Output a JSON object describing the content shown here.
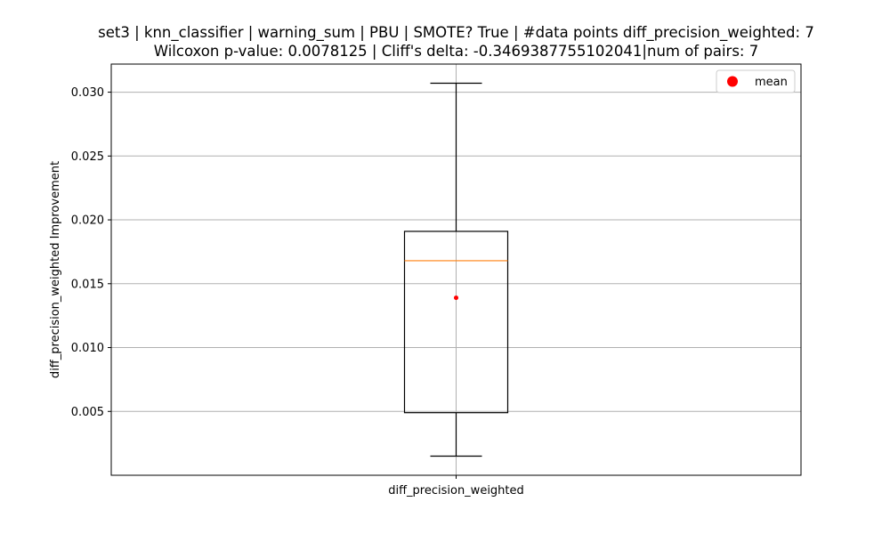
{
  "chart_data": {
    "type": "box",
    "title_line1": "set3 | knn_classifier | warning_sum | PBU | SMOTE? True | #data points diff_precision_weighted: 7",
    "title_line2": "Wilcoxon p-value: 0.0078125 | Cliff's delta: -0.3469387755102041|num of pairs: 7",
    "xlabel": "",
    "ylabel": "diff_precision_weighted Improvement",
    "categories": [
      "diff_precision_weighted"
    ],
    "box": {
      "whisker_low": 0.0015,
      "q1": 0.0049,
      "median": 0.0168,
      "q3": 0.0191,
      "whisker_high": 0.0307,
      "mean": 0.0139
    },
    "ylim": [
      0.0,
      0.0322
    ],
    "yticks": [
      "0.005",
      "0.010",
      "0.015",
      "0.020",
      "0.025",
      "0.030"
    ],
    "ytick_values": [
      0.005,
      0.01,
      0.015,
      0.02,
      0.025,
      0.03
    ],
    "grid": true,
    "legend": {
      "position": "top-right",
      "entries": [
        "mean"
      ]
    },
    "colors": {
      "box": "#000000",
      "median": "#ff7f0e",
      "mean": "#ff0000",
      "grid": "#b0b0b0"
    }
  }
}
